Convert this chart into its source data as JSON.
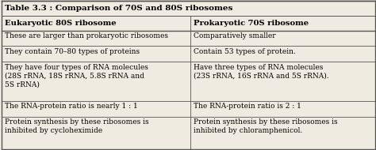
{
  "title": "Table 3.3 : Comparison of 70S and 80S ribosomes",
  "col1_header": "Eukaryotic 80S ribosome",
  "col2_header": "Prokaryotic 70S ribosome",
  "rows": [
    [
      "These are larger than prokaryotic ribosomes",
      "Comparatively smaller"
    ],
    [
      "They contain 70–80 types of proteins",
      "Contain 53 types of protein."
    ],
    [
      "They have four types of RNA molecules\n(28S rRNA, 18S rRNA, 5.8S rRNA and\n5S rRNA)",
      "Have three types of RNA molecules\n(23S rRNA, 16S rRNA and 5S rRNA)."
    ],
    [
      "The RNA-protein ratio is nearly 1 : 1",
      "The RNA-protein ratio is 2 : 1"
    ],
    [
      "Protein synthesis by these ribosomes is\ninhibited by cycloheximide",
      "Protein synthesis by these ribosomes is\ninhibited by chloramphenicol."
    ]
  ],
  "bg_color": "#f0ebe0",
  "border_color": "#555555",
  "title_fontsize": 7.5,
  "header_fontsize": 7.2,
  "cell_fontsize": 6.5,
  "col_split": 0.505,
  "fig_width": 4.74,
  "fig_height": 1.9,
  "dpi": 100
}
